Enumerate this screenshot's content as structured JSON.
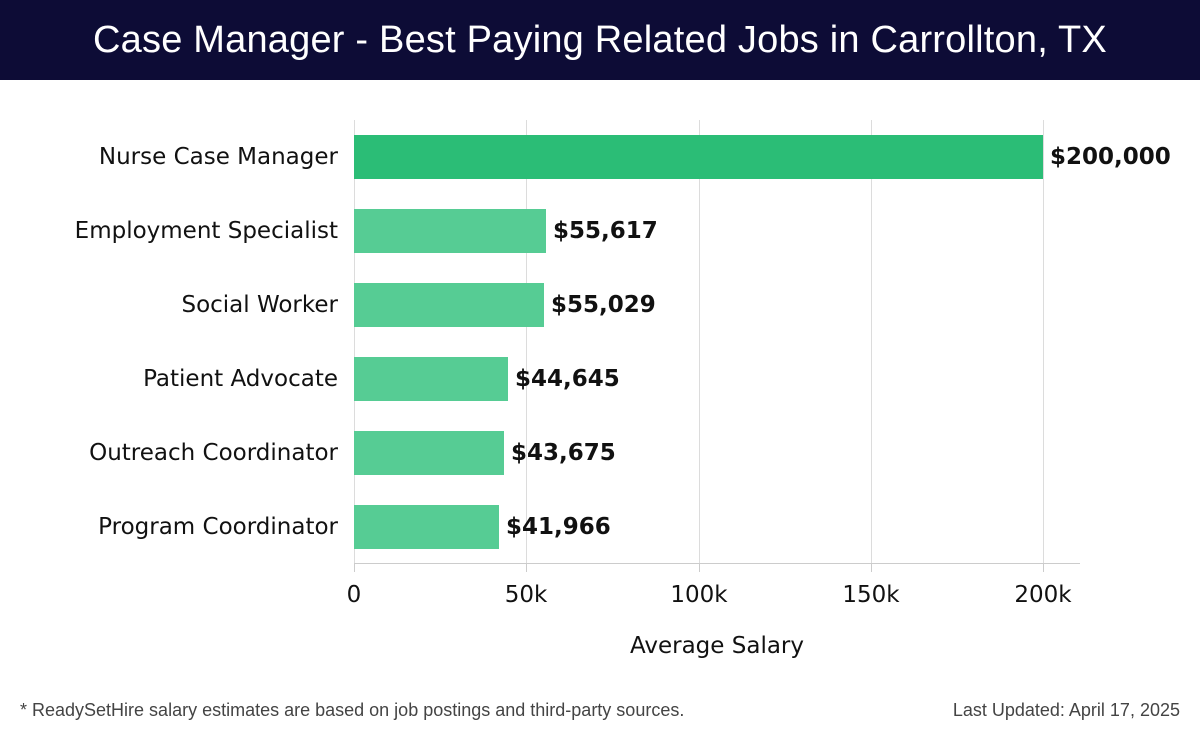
{
  "header": {
    "title": "Case Manager - Best Paying Related Jobs in Carrollton, TX"
  },
  "chart_data": {
    "type": "bar",
    "orientation": "horizontal",
    "title": "Case Manager - Best Paying Related Jobs in Carrollton, TX",
    "categories": [
      "Nurse Case Manager",
      "Employment Specialist",
      "Social Worker",
      "Patient Advocate",
      "Outreach Coordinator",
      "Program Coordinator"
    ],
    "values": [
      200000,
      55617,
      55029,
      44645,
      43675,
      41966
    ],
    "value_labels": [
      "$200,000",
      "$55,617",
      "$55,029",
      "$44,645",
      "$43,675",
      "$41,966"
    ],
    "xlabel": "Average Salary",
    "ylabel": "",
    "xlim": [
      0,
      210000
    ],
    "xticks": [
      0,
      50000,
      100000,
      150000,
      200000
    ],
    "xtick_labels": [
      "0",
      "50k",
      "100k",
      "150k",
      "200k"
    ],
    "grid": true,
    "legend": null,
    "colors": {
      "highlight": "#2bbd76",
      "default": "#56cc94"
    }
  },
  "footer": {
    "note": "* ReadySetHire salary estimates are based on job postings and third-party sources.",
    "updated": "Last Updated: April 17, 2025"
  }
}
